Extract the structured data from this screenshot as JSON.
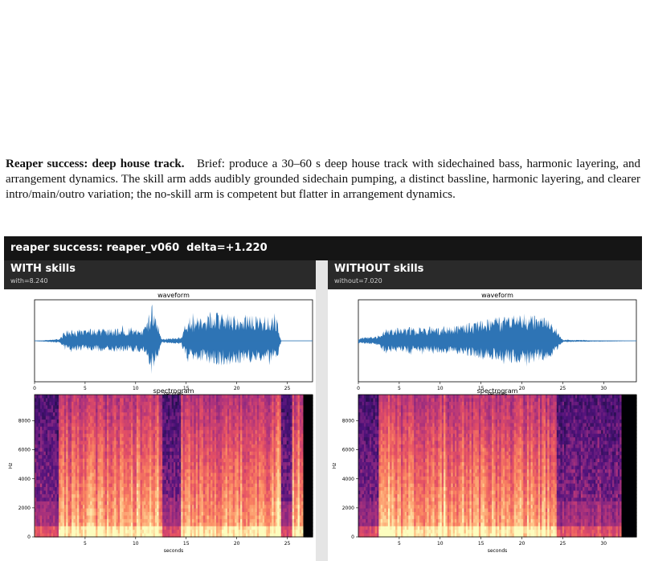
{
  "caption": {
    "title": "Reaper success: deep house track.",
    "body": "Brief: produce a 30–60 s deep house track with sidechained bass, harmonic layering, and arrangement dynamics. The skill arm adds audibly grounded sidechain pumping, a distinct bassline, harmonic layering, and clearer intro/main/outro variation; the no-skill arm is competent but flatter in arrangement dynamics."
  },
  "figure": {
    "header": "reaper success: reaper_v060  delta=+1.220",
    "panels": [
      {
        "title": "WITH skills",
        "subtitle": "with=8.240"
      },
      {
        "title": "WITHOUT skills",
        "subtitle": "without=7.020"
      }
    ]
  },
  "colors": {
    "waveform": "#2e74b5",
    "header_bg": "#151515",
    "panel_header_bg": "#2a2a2a",
    "spectrogram_colormap": "magma"
  },
  "chart_data": [
    {
      "type": "line",
      "panel": "WITH skills",
      "title": "waveform",
      "xlabel": "seconds",
      "ylabel": "",
      "xlim": [
        0,
        27.5
      ],
      "x_ticks": [
        0,
        5,
        10,
        15,
        20,
        25
      ],
      "envelope": [
        {
          "t": 0,
          "a": 0.0
        },
        {
          "t": 2.5,
          "a": 0.05
        },
        {
          "t": 3.0,
          "a": 0.28
        },
        {
          "t": 6.0,
          "a": 0.32
        },
        {
          "t": 10.0,
          "a": 0.34
        },
        {
          "t": 11.0,
          "a": 0.38
        },
        {
          "t": 11.6,
          "a": 1.0
        },
        {
          "t": 12.2,
          "a": 0.55
        },
        {
          "t": 12.6,
          "a": 0.05
        },
        {
          "t": 14.5,
          "a": 0.1
        },
        {
          "t": 15.0,
          "a": 0.55
        },
        {
          "t": 18.0,
          "a": 0.75
        },
        {
          "t": 21.0,
          "a": 0.7
        },
        {
          "t": 24.0,
          "a": 0.6
        },
        {
          "t": 24.4,
          "a": 0.0
        },
        {
          "t": 27.5,
          "a": 0.0
        }
      ]
    },
    {
      "type": "heatmap",
      "panel": "WITH skills",
      "title": "spectrogram",
      "xlabel": "seconds",
      "ylabel": "Hz",
      "xlim": [
        0,
        27.5
      ],
      "ylim": [
        0,
        9800
      ],
      "x_ticks": [
        5,
        10,
        15,
        20,
        25
      ],
      "y_ticks": [
        0,
        2000,
        4000,
        6000,
        8000
      ],
      "silent_after": 26.6,
      "dark_bands": [
        [
          0,
          2.4
        ],
        [
          12.6,
          14.5
        ],
        [
          24.4,
          25.5
        ]
      ]
    },
    {
      "type": "line",
      "panel": "WITHOUT skills",
      "title": "waveform",
      "xlabel": "seconds",
      "ylabel": "",
      "xlim": [
        0,
        34
      ],
      "x_ticks": [
        0,
        5,
        10,
        15,
        20,
        25,
        30
      ],
      "envelope": [
        {
          "t": 0,
          "a": 0.08
        },
        {
          "t": 2.5,
          "a": 0.12
        },
        {
          "t": 3.0,
          "a": 0.32
        },
        {
          "t": 8.0,
          "a": 0.38
        },
        {
          "t": 12.0,
          "a": 0.4
        },
        {
          "t": 14.0,
          "a": 0.5
        },
        {
          "t": 17.0,
          "a": 0.62
        },
        {
          "t": 20.0,
          "a": 0.75
        },
        {
          "t": 23.0,
          "a": 0.6
        },
        {
          "t": 24.0,
          "a": 0.4
        },
        {
          "t": 25.0,
          "a": 0.03
        },
        {
          "t": 34,
          "a": 0.0
        }
      ]
    },
    {
      "type": "heatmap",
      "panel": "WITHOUT skills",
      "title": "spectrogram",
      "xlabel": "seconds",
      "ylabel": "Hz",
      "xlim": [
        0,
        34
      ],
      "ylim": [
        0,
        9800
      ],
      "x_ticks": [
        5,
        10,
        15,
        20,
        25,
        30
      ],
      "y_ticks": [
        0,
        2000,
        4000,
        6000,
        8000
      ],
      "silent_after": 32.3,
      "dark_bands": [
        [
          0,
          2.4
        ],
        [
          24.2,
          32.3
        ]
      ]
    }
  ]
}
